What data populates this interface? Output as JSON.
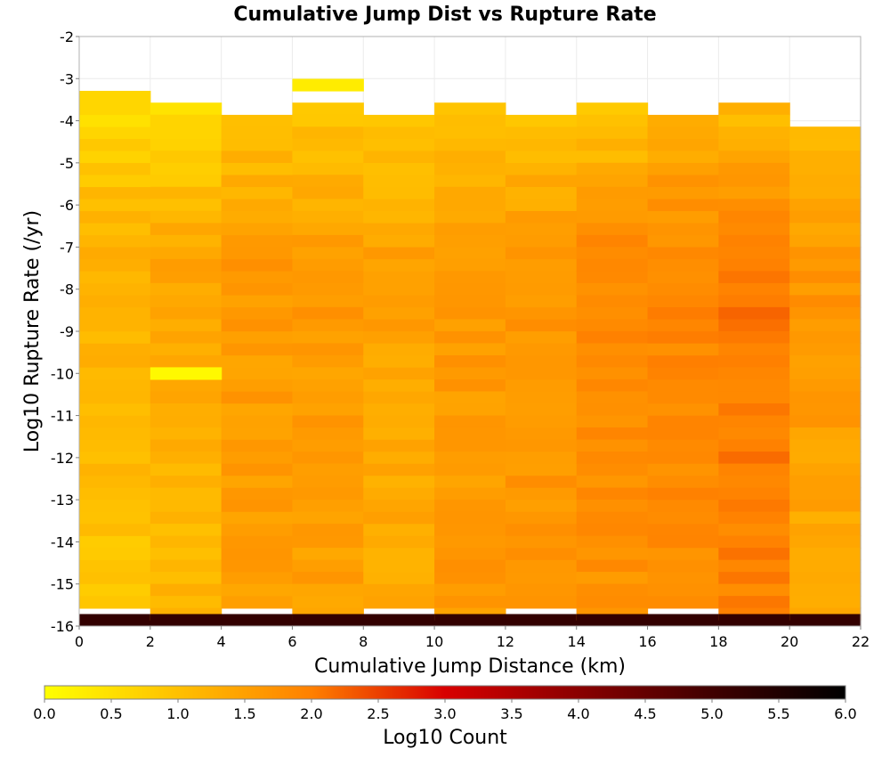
{
  "chart_data": {
    "type": "heatmap",
    "title": "Cumulative Jump Dist vs Rupture Rate",
    "xlabel": "Cumulative Jump Distance (km)",
    "ylabel": "Log10 Rupture Rate (/yr)",
    "xlim": [
      0,
      22
    ],
    "ylim": [
      -16,
      -2
    ],
    "x_ticks": [
      "0",
      "2",
      "4",
      "6",
      "8",
      "10",
      "12",
      "14",
      "16",
      "18",
      "20",
      "22"
    ],
    "y_ticks": [
      "-2",
      "-3",
      "-4",
      "-5",
      "-6",
      "-7",
      "-8",
      "-9",
      "-10",
      "-11",
      "-12",
      "-13",
      "-14",
      "-15",
      "-16"
    ],
    "x_bin_width": 2,
    "y_bin_width": 0.2857,
    "y_bins_count": 49,
    "bottom_row_value": 5.2,
    "columns": [
      {
        "x_start": 0,
        "top": -3.29,
        "start": 0.5,
        "peak": 1.3,
        "end": 0.9,
        "seed": 1
      },
      {
        "x_start": 2,
        "top": -3.57,
        "start": 0.6,
        "peak": 1.4,
        "end": 1.1,
        "seed": 2
      },
      {
        "x_start": 4,
        "top": -3.86,
        "start": 1.0,
        "peak": 1.6,
        "end": 1.5,
        "seed": 3
      },
      {
        "x_start": 6,
        "top": -3.57,
        "start": 0.9,
        "peak": 1.6,
        "end": 1.5,
        "seed": 4
      },
      {
        "x_start": 8,
        "top": -3.86,
        "start": 0.9,
        "peak": 1.5,
        "end": 1.3,
        "seed": 5
      },
      {
        "x_start": 10,
        "top": -3.57,
        "start": 0.9,
        "peak": 1.6,
        "end": 1.6,
        "seed": 6
      },
      {
        "x_start": 12,
        "top": -3.86,
        "start": 1.0,
        "peak": 1.7,
        "end": 1.6,
        "seed": 7
      },
      {
        "x_start": 14,
        "top": -3.57,
        "start": 0.9,
        "peak": 1.9,
        "end": 1.7,
        "seed": 8
      },
      {
        "x_start": 16,
        "top": -3.86,
        "start": 1.3,
        "peak": 1.9,
        "end": 1.8,
        "seed": 9
      },
      {
        "x_start": 18,
        "top": -3.57,
        "start": 1.1,
        "peak": 2.1,
        "end": 1.9,
        "seed": 10
      },
      {
        "x_start": 20,
        "top": -4.14,
        "start": 1.0,
        "peak": 1.7,
        "end": 1.3,
        "seed": 11
      }
    ],
    "special_cells": [
      {
        "x_start": 6,
        "y_start": -3.29,
        "value": 0.3
      },
      {
        "x_start": 2,
        "y_start": -10.14,
        "value": 0.1
      }
    ],
    "colorbar": {
      "label": "Log10 Count",
      "min": 0,
      "max": 6,
      "ticks": [
        "0.0",
        "0.5",
        "1.0",
        "1.5",
        "2.0",
        "2.5",
        "3.0",
        "3.5",
        "4.0",
        "4.5",
        "5.0",
        "5.5",
        "6.0"
      ],
      "stops": [
        {
          "v": 0.0,
          "color": "#ffff00"
        },
        {
          "v": 1.0,
          "color": "#ffc000"
        },
        {
          "v": 2.0,
          "color": "#ff8000"
        },
        {
          "v": 3.0,
          "color": "#d80000"
        },
        {
          "v": 4.0,
          "color": "#8a0000"
        },
        {
          "v": 5.0,
          "color": "#400000"
        },
        {
          "v": 6.0,
          "color": "#000000"
        }
      ]
    },
    "grid": true,
    "legend_position": "bottom"
  }
}
